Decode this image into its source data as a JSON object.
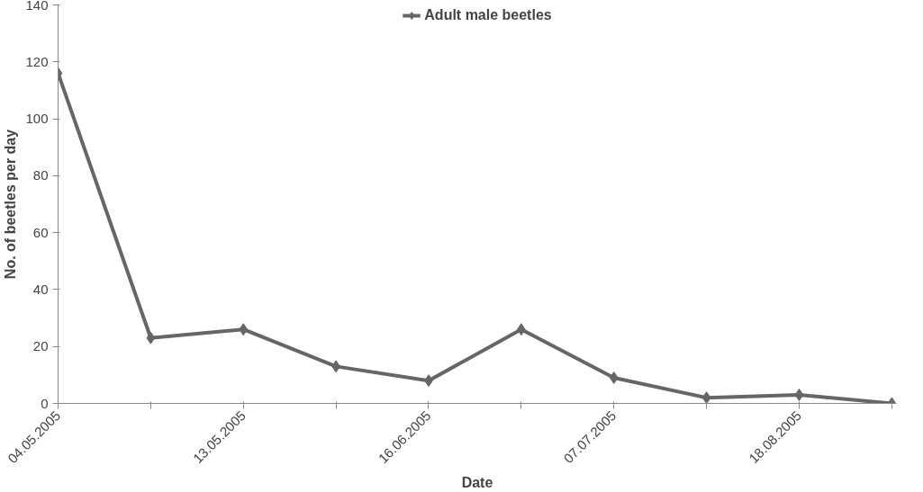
{
  "chart_data": {
    "type": "line",
    "xlabel": "Date",
    "ylabel": "No. of beetles per day",
    "categories": [
      "04.05.2005",
      null,
      "13.05.2005",
      null,
      "16.06.2005",
      null,
      "07.07.2005",
      null,
      "18.08.2005",
      null
    ],
    "series": [
      {
        "name": "Adult male beetles",
        "color": "#666666",
        "values": [
          116,
          23,
          26,
          13,
          8,
          26,
          9,
          2,
          3,
          0
        ]
      }
    ],
    "ylim": [
      0,
      140
    ],
    "yticks": [
      0,
      20,
      40,
      60,
      80,
      100,
      120,
      140
    ],
    "grid": false,
    "legend": "top",
    "marker": "diamond",
    "line_style": "solid"
  }
}
